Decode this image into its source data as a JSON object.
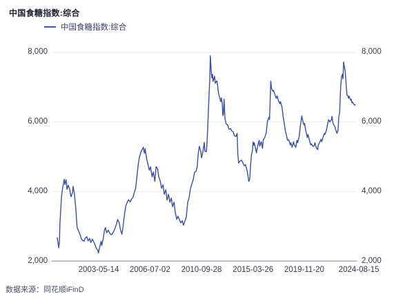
{
  "header": {
    "title": "中国食糖指数:综合"
  },
  "legend": {
    "label": "中国食糖指数:综合",
    "line_color": "#46549f"
  },
  "footer": {
    "source": "数据来源：同花顺iFinD"
  },
  "colors": {
    "series_line": "#3d4da0",
    "grid_line": "#ededf8",
    "axis_line": "#a6abbf",
    "tick_text": "#363a47"
  },
  "chart_data": {
    "type": "line",
    "title": "中国食糖指数:综合",
    "legend": [
      "中国食糖指数:综合"
    ],
    "legend_position": "top-left",
    "grid": true,
    "ylim": [
      2000,
      8000
    ],
    "yticks": [
      {
        "value": 2000,
        "label": "2,000"
      },
      {
        "value": 4000,
        "label": "4,000"
      },
      {
        "value": 6000,
        "label": "6,000"
      },
      {
        "value": 8000,
        "label": "8,000"
      }
    ],
    "y_axis_sides": [
      "left",
      "right"
    ],
    "xticks": [
      {
        "pos": 15.4,
        "label": "2003-05-14"
      },
      {
        "pos": 32.2,
        "label": "2006-07-02"
      },
      {
        "pos": 49.1,
        "label": "2010-09-28"
      },
      {
        "pos": 66.0,
        "label": "2015-03-26"
      },
      {
        "pos": 82.8,
        "label": "2019-11-20"
      },
      {
        "pos": 100.7,
        "label": "2024-08-15"
      }
    ],
    "series": [
      {
        "name": "中国食糖指数:综合",
        "color": "#3d4da0",
        "points_format": "[x_percent_across_plot, index_value]",
        "points": [
          [
            1.8,
            2670
          ],
          [
            2.3,
            2380
          ],
          [
            2.5,
            2550
          ],
          [
            2.7,
            3100
          ],
          [
            3.2,
            3850
          ],
          [
            3.6,
            4120
          ],
          [
            4.1,
            4350
          ],
          [
            4.3,
            4200
          ],
          [
            4.7,
            4340
          ],
          [
            5.0,
            4060
          ],
          [
            5.4,
            4180
          ],
          [
            5.9,
            4050
          ],
          [
            6.3,
            3850
          ],
          [
            6.8,
            3960
          ],
          [
            7.0,
            4150
          ],
          [
            7.4,
            3960
          ],
          [
            7.9,
            3500
          ],
          [
            8.3,
            2970
          ],
          [
            8.8,
            2860
          ],
          [
            9.2,
            2780
          ],
          [
            9.7,
            2640
          ],
          [
            10.1,
            2600
          ],
          [
            10.6,
            2570
          ],
          [
            11.0,
            2660
          ],
          [
            11.5,
            2700
          ],
          [
            11.9,
            2580
          ],
          [
            12.4,
            2650
          ],
          [
            12.8,
            2530
          ],
          [
            13.3,
            2630
          ],
          [
            13.7,
            2560
          ],
          [
            14.2,
            2470
          ],
          [
            14.6,
            2370
          ],
          [
            15.1,
            2310
          ],
          [
            15.3,
            2230
          ],
          [
            15.8,
            2430
          ],
          [
            16.2,
            2570
          ],
          [
            16.4,
            2450
          ],
          [
            16.9,
            2660
          ],
          [
            17.3,
            2900
          ],
          [
            17.6,
            2960
          ],
          [
            18.0,
            2810
          ],
          [
            18.5,
            2890
          ],
          [
            18.9,
            2820
          ],
          [
            19.4,
            2760
          ],
          [
            19.8,
            2770
          ],
          [
            20.3,
            2850
          ],
          [
            20.7,
            2930
          ],
          [
            21.2,
            3060
          ],
          [
            21.6,
            3200
          ],
          [
            22.1,
            3100
          ],
          [
            22.5,
            2910
          ],
          [
            23.0,
            2770
          ],
          [
            23.4,
            3010
          ],
          [
            23.9,
            3360
          ],
          [
            24.3,
            3590
          ],
          [
            24.8,
            3700
          ],
          [
            25.2,
            3760
          ],
          [
            25.7,
            3700
          ],
          [
            26.1,
            3770
          ],
          [
            26.6,
            3830
          ],
          [
            27.0,
            3950
          ],
          [
            27.5,
            4090
          ],
          [
            27.9,
            4400
          ],
          [
            28.4,
            4800
          ],
          [
            28.8,
            5000
          ],
          [
            29.3,
            5150
          ],
          [
            29.7,
            5210
          ],
          [
            30.0,
            5270
          ],
          [
            30.4,
            5100
          ],
          [
            30.6,
            5230
          ],
          [
            31.1,
            4940
          ],
          [
            31.5,
            4800
          ],
          [
            32.0,
            4610
          ],
          [
            32.4,
            4710
          ],
          [
            32.9,
            4420
          ],
          [
            33.3,
            4560
          ],
          [
            33.8,
            4290
          ],
          [
            34.2,
            4710
          ],
          [
            34.7,
            4650
          ],
          [
            35.1,
            4420
          ],
          [
            35.6,
            4290
          ],
          [
            36.0,
            4090
          ],
          [
            36.5,
            4190
          ],
          [
            36.9,
            3920
          ],
          [
            37.4,
            4050
          ],
          [
            37.8,
            3750
          ],
          [
            38.3,
            3920
          ],
          [
            38.7,
            3690
          ],
          [
            39.2,
            3810
          ],
          [
            39.6,
            3560
          ],
          [
            40.1,
            3690
          ],
          [
            40.5,
            3400
          ],
          [
            41.0,
            3200
          ],
          [
            41.4,
            3290
          ],
          [
            41.9,
            3180
          ],
          [
            42.3,
            3100
          ],
          [
            42.8,
            3160
          ],
          [
            43.2,
            3030
          ],
          [
            43.7,
            3160
          ],
          [
            44.1,
            3260
          ],
          [
            44.6,
            3690
          ],
          [
            45.0,
            3810
          ],
          [
            45.5,
            4090
          ],
          [
            45.9,
            4210
          ],
          [
            46.4,
            4350
          ],
          [
            46.8,
            4550
          ],
          [
            47.3,
            4580
          ],
          [
            47.7,
            4710
          ],
          [
            48.0,
            5070
          ],
          [
            48.4,
            5300
          ],
          [
            48.9,
            5140
          ],
          [
            49.1,
            4970
          ],
          [
            49.5,
            5110
          ],
          [
            50.0,
            5410
          ],
          [
            50.2,
            5160
          ],
          [
            50.7,
            5140
          ],
          [
            50.9,
            5390
          ],
          [
            51.1,
            5790
          ],
          [
            51.4,
            6390
          ],
          [
            51.6,
            6850
          ],
          [
            51.8,
            7210
          ],
          [
            52.0,
            7900
          ],
          [
            52.3,
            7440
          ],
          [
            52.5,
            7260
          ],
          [
            52.7,
            7370
          ],
          [
            52.9,
            7160
          ],
          [
            53.2,
            7250
          ],
          [
            53.4,
            7310
          ],
          [
            53.6,
            7110
          ],
          [
            54.1,
            7180
          ],
          [
            54.3,
            7100
          ],
          [
            54.5,
            6950
          ],
          [
            54.7,
            6810
          ],
          [
            55.0,
            6710
          ],
          [
            55.2,
            6650
          ],
          [
            55.4,
            6580
          ],
          [
            55.6,
            6690
          ],
          [
            55.9,
            6520
          ],
          [
            56.1,
            6180
          ],
          [
            56.3,
            6220
          ],
          [
            56.5,
            6650
          ],
          [
            56.8,
            6090
          ],
          [
            57.2,
            5940
          ],
          [
            57.7,
            5910
          ],
          [
            58.1,
            5790
          ],
          [
            58.6,
            5810
          ],
          [
            59.0,
            5740
          ],
          [
            59.5,
            5710
          ],
          [
            59.9,
            5600
          ],
          [
            60.4,
            5580
          ],
          [
            60.8,
            5670
          ],
          [
            61.0,
            5100
          ],
          [
            61.3,
            4820
          ],
          [
            61.7,
            4870
          ],
          [
            62.2,
            4900
          ],
          [
            62.6,
            4840
          ],
          [
            63.1,
            4740
          ],
          [
            63.5,
            4770
          ],
          [
            64.0,
            4620
          ],
          [
            64.4,
            4420
          ],
          [
            64.6,
            4290
          ],
          [
            64.9,
            4350
          ],
          [
            65.3,
            4870
          ],
          [
            65.5,
            5060
          ],
          [
            65.8,
            5160
          ],
          [
            66.0,
            5420
          ],
          [
            66.2,
            5330
          ],
          [
            66.4,
            5400
          ],
          [
            66.9,
            5210
          ],
          [
            67.1,
            5110
          ],
          [
            67.6,
            5340
          ],
          [
            68.0,
            5470
          ],
          [
            68.2,
            5300
          ],
          [
            68.7,
            5430
          ],
          [
            69.1,
            5240
          ],
          [
            69.4,
            5500
          ],
          [
            69.8,
            5540
          ],
          [
            70.3,
            5670
          ],
          [
            70.7,
            6000
          ],
          [
            71.2,
            6130
          ],
          [
            71.4,
            6070
          ],
          [
            71.6,
            6600
          ],
          [
            71.8,
            7170
          ],
          [
            72.1,
            6950
          ],
          [
            72.5,
            6880
          ],
          [
            72.7,
            6910
          ],
          [
            73.2,
            6780
          ],
          [
            73.6,
            6680
          ],
          [
            73.9,
            6750
          ],
          [
            74.3,
            6620
          ],
          [
            74.8,
            6520
          ],
          [
            75.0,
            6580
          ],
          [
            75.5,
            6420
          ],
          [
            75.9,
            6130
          ],
          [
            76.1,
            6030
          ],
          [
            76.6,
            5740
          ],
          [
            77.0,
            5600
          ],
          [
            77.3,
            5470
          ],
          [
            77.7,
            5490
          ],
          [
            78.2,
            5340
          ],
          [
            78.4,
            5400
          ],
          [
            78.8,
            5270
          ],
          [
            79.3,
            5430
          ],
          [
            79.5,
            5340
          ],
          [
            80.0,
            5270
          ],
          [
            80.4,
            5470
          ],
          [
            80.6,
            5400
          ],
          [
            81.1,
            5570
          ],
          [
            81.5,
            5870
          ],
          [
            81.8,
            6060
          ],
          [
            82.0,
            6170
          ],
          [
            82.4,
            6000
          ],
          [
            82.7,
            5910
          ],
          [
            82.9,
            5960
          ],
          [
            83.3,
            5740
          ],
          [
            83.8,
            5550
          ],
          [
            84.0,
            5640
          ],
          [
            84.5,
            5470
          ],
          [
            84.9,
            5340
          ],
          [
            85.1,
            5370
          ],
          [
            85.6,
            5300
          ],
          [
            86.0,
            5300
          ],
          [
            86.3,
            5400
          ],
          [
            86.7,
            5270
          ],
          [
            87.2,
            5200
          ],
          [
            87.4,
            5340
          ],
          [
            87.8,
            5400
          ],
          [
            88.3,
            5500
          ],
          [
            88.5,
            5430
          ],
          [
            89.0,
            5570
          ],
          [
            89.4,
            5670
          ],
          [
            89.6,
            5640
          ],
          [
            90.1,
            5770
          ],
          [
            90.5,
            5960
          ],
          [
            90.8,
            6060
          ],
          [
            91.2,
            6000
          ],
          [
            91.7,
            6060
          ],
          [
            91.9,
            6160
          ],
          [
            92.1,
            6030
          ],
          [
            92.3,
            5940
          ],
          [
            92.8,
            5870
          ],
          [
            93.0,
            5800
          ],
          [
            93.5,
            5670
          ],
          [
            93.9,
            5770
          ],
          [
            94.1,
            6130
          ],
          [
            94.4,
            6260
          ],
          [
            94.6,
            6720
          ],
          [
            94.8,
            7080
          ],
          [
            95.0,
            7270
          ],
          [
            95.3,
            7370
          ],
          [
            95.5,
            7240
          ],
          [
            95.7,
            7720
          ],
          [
            95.9,
            7600
          ],
          [
            96.2,
            7470
          ],
          [
            96.4,
            7240
          ],
          [
            96.6,
            6970
          ],
          [
            96.8,
            6770
          ],
          [
            97.1,
            6750
          ],
          [
            97.3,
            6680
          ],
          [
            97.5,
            6740
          ],
          [
            97.7,
            6690
          ],
          [
            98.0,
            6620
          ],
          [
            98.2,
            6650
          ],
          [
            98.4,
            6550
          ],
          [
            98.6,
            6570
          ],
          [
            98.9,
            6530
          ],
          [
            99.1,
            6500
          ],
          [
            99.3,
            6480
          ],
          [
            99.5,
            6490
          ]
        ]
      }
    ]
  }
}
